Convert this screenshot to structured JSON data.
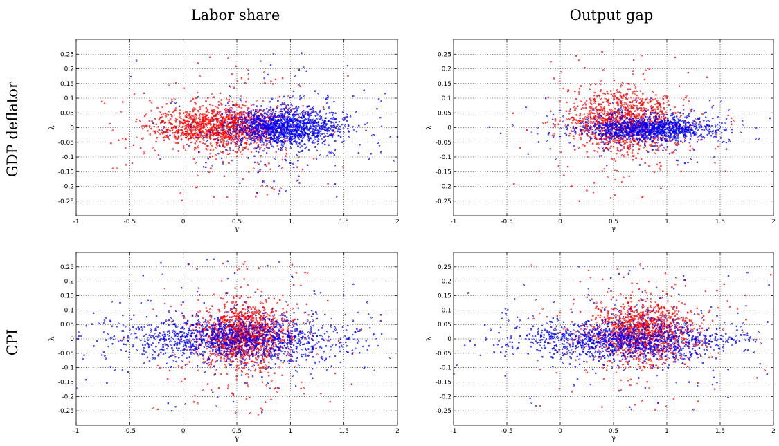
{
  "col_titles": [
    "Labor share",
    "Output gap"
  ],
  "row_titles": [
    "GDP deflator",
    "CPI"
  ],
  "colors": {
    "series_a": "#ff0000",
    "series_b": "#0000ff"
  },
  "chart_data": [
    {
      "type": "scatter",
      "id": "gdp-labor",
      "row_title": "GDP deflator",
      "col_title": "Labor share",
      "xlabel": "γ",
      "ylabel": "λ",
      "xlim": [
        -1,
        2
      ],
      "ylim": [
        -0.3,
        0.3
      ],
      "xticks": [
        -1,
        -0.5,
        0,
        0.5,
        1,
        1.5,
        2
      ],
      "xtick_labels": [
        "-1",
        "-0.5",
        "0",
        "0.5",
        "1",
        "1.5",
        "2"
      ],
      "yticks": [
        0.25,
        0.2,
        0.15,
        0.1,
        0.05,
        0,
        -0.05,
        -0.1,
        -0.15,
        -0.2,
        -0.25
      ],
      "ytick_labels": [
        "0.25",
        "0.2",
        "0.15",
        "0.1",
        "0.05",
        "0",
        "-0.05",
        "-0.1",
        "-0.15",
        "-0.2",
        "-0.25"
      ],
      "grid": true,
      "series": [
        {
          "color": "#ff0000",
          "n_points": 1400,
          "x_center": 0.35,
          "x_spread": 0.3,
          "y_center": 0.002,
          "y_spread": 0.035,
          "x_range": [
            -0.8,
            1.6
          ],
          "y_range": [
            -0.25,
            0.28
          ]
        },
        {
          "color": "#0000ff",
          "n_points": 1400,
          "x_center": 0.95,
          "x_spread": 0.25,
          "y_center": 0.0,
          "y_spread": 0.03,
          "x_range": [
            -0.7,
            2.0
          ],
          "y_range": [
            -0.25,
            0.28
          ]
        }
      ]
    },
    {
      "type": "scatter",
      "id": "gdp-output",
      "row_title": "GDP deflator",
      "col_title": "Output gap",
      "xlabel": "γ",
      "ylabel": "λ",
      "xlim": [
        -1,
        2
      ],
      "ylim": [
        -0.3,
        0.3
      ],
      "xticks": [
        -1,
        -0.5,
        0,
        0.5,
        1,
        1.5,
        2
      ],
      "xtick_labels": [
        "-1",
        "-0.5",
        "0",
        "0.5",
        "1",
        "1.5",
        "2"
      ],
      "yticks": [
        0.25,
        0.2,
        0.15,
        0.1,
        0.05,
        0,
        -0.05,
        -0.1,
        -0.15,
        -0.2,
        -0.25
      ],
      "ytick_labels": [
        "0.25",
        "0.2",
        "0.15",
        "0.1",
        "0.05",
        "0",
        "-0.05",
        "-0.1",
        "-0.15",
        "-0.2",
        "-0.25"
      ],
      "grid": true,
      "series": [
        {
          "color": "#ff0000",
          "n_points": 1200,
          "x_center": 0.6,
          "x_spread": 0.25,
          "y_center": 0.02,
          "y_spread": 0.05,
          "x_range": [
            -0.5,
            2.0
          ],
          "y_range": [
            -0.27,
            0.26
          ]
        },
        {
          "color": "#0000ff",
          "n_points": 1200,
          "x_center": 0.85,
          "x_spread": 0.3,
          "y_center": -0.005,
          "y_spread": 0.02,
          "x_range": [
            -0.7,
            2.0
          ],
          "y_range": [
            -0.15,
            0.1
          ]
        }
      ]
    },
    {
      "type": "scatter",
      "id": "cpi-labor",
      "row_title": "CPI",
      "col_title": "Labor share",
      "xlabel": "γ",
      "ylabel": "λ",
      "xlim": [
        -1,
        2
      ],
      "ylim": [
        -0.3,
        0.3
      ],
      "xticks": [
        -1,
        -0.5,
        0,
        0.5,
        1,
        1.5,
        2
      ],
      "xtick_labels": [
        "-1",
        "-0.5",
        "0",
        "0.5",
        "1",
        "1.5",
        "2"
      ],
      "yticks": [
        0.25,
        0.2,
        0.15,
        0.1,
        0.05,
        0,
        -0.05,
        -0.1,
        -0.15,
        -0.2,
        -0.25
      ],
      "ytick_labels": [
        "0.25",
        "0.2",
        "0.15",
        "0.1",
        "0.05",
        "0",
        "-0.05",
        "-0.1",
        "-0.15",
        "-0.2",
        "-0.25"
      ],
      "grid": true,
      "series": [
        {
          "color": "#ff0000",
          "n_points": 1400,
          "x_center": 0.55,
          "x_spread": 0.2,
          "y_center": 0.01,
          "y_spread": 0.05,
          "x_range": [
            -0.6,
            1.8
          ],
          "y_range": [
            -0.27,
            0.28
          ]
        },
        {
          "color": "#0000ff",
          "n_points": 1400,
          "x_center": 0.5,
          "x_spread": 0.55,
          "y_center": 0.0,
          "y_spread": 0.04,
          "x_range": [
            -1.0,
            2.0
          ],
          "y_range": [
            -0.28,
            0.29
          ]
        }
      ]
    },
    {
      "type": "scatter",
      "id": "cpi-output",
      "row_title": "CPI",
      "col_title": "Output gap",
      "xlabel": "γ",
      "ylabel": "λ",
      "xlim": [
        -1,
        2
      ],
      "ylim": [
        -0.3,
        0.3
      ],
      "xticks": [
        -1,
        -0.5,
        0,
        0.5,
        1,
        1.5,
        2
      ],
      "xtick_labels": [
        "-1",
        "-0.5",
        "0",
        "0.5",
        "1",
        "1.5",
        "2"
      ],
      "yticks": [
        0.25,
        0.2,
        0.15,
        0.1,
        0.05,
        0,
        -0.05,
        -0.1,
        -0.15,
        -0.2,
        -0.25
      ],
      "ytick_labels": [
        "0.25",
        "0.2",
        "0.15",
        "0.1",
        "0.05",
        "0",
        "-0.05",
        "-0.1",
        "-0.15",
        "-0.2",
        "-0.25"
      ],
      "grid": true,
      "series": [
        {
          "color": "#ff0000",
          "n_points": 1300,
          "x_center": 0.75,
          "x_spread": 0.25,
          "y_center": 0.02,
          "y_spread": 0.05,
          "x_range": [
            -0.3,
            2.0
          ],
          "y_range": [
            -0.26,
            0.26
          ]
        },
        {
          "color": "#0000ff",
          "n_points": 1300,
          "x_center": 0.6,
          "x_spread": 0.5,
          "y_center": -0.005,
          "y_spread": 0.035,
          "x_range": [
            -1.0,
            2.0
          ],
          "y_range": [
            -0.25,
            0.27
          ]
        }
      ]
    }
  ]
}
